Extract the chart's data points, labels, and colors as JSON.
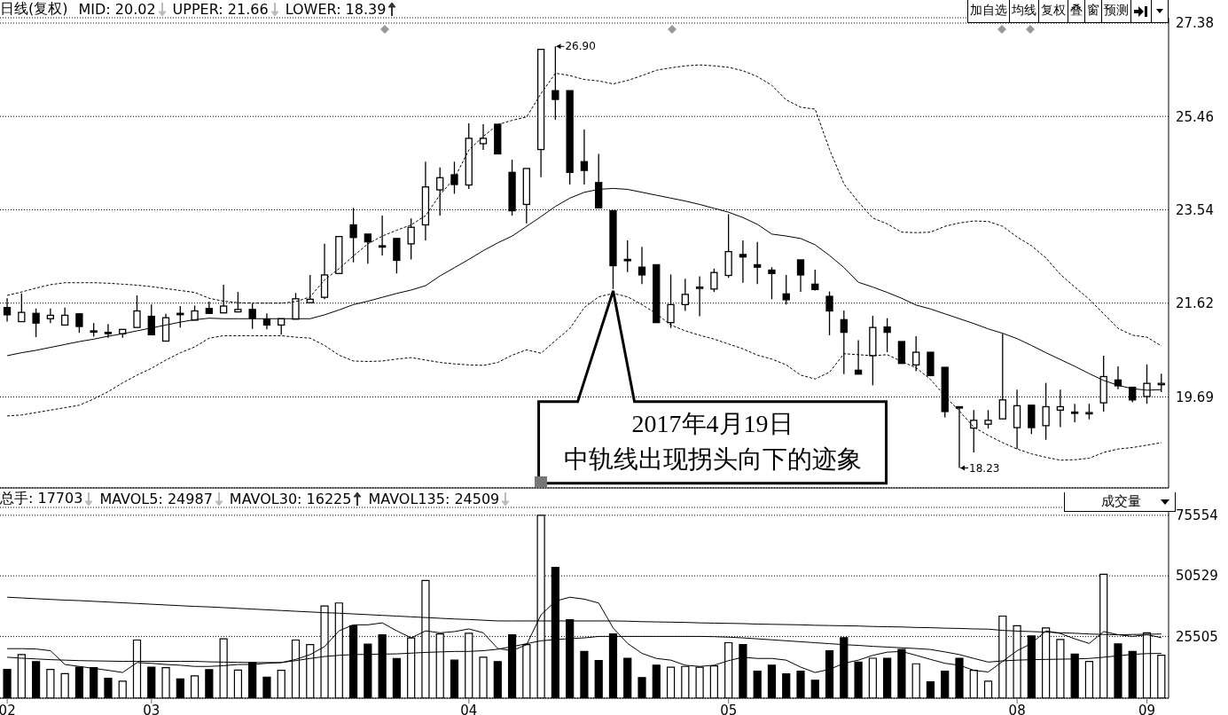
{
  "chart_data": [
    {
      "type": "candlestick",
      "title": "日线(复权)",
      "categories": [
        "02",
        null,
        null,
        null,
        null,
        null,
        null,
        null,
        null,
        null,
        "03",
        null,
        null,
        null,
        null,
        null,
        null,
        null,
        null,
        null,
        null,
        null,
        null,
        null,
        null,
        null,
        null,
        null,
        null,
        null,
        null,
        null,
        "04",
        null,
        null,
        null,
        null,
        null,
        null,
        null,
        null,
        null,
        null,
        null,
        null,
        null,
        null,
        null,
        null,
        null,
        "05",
        null,
        null,
        null,
        null,
        null,
        null,
        null,
        null,
        null,
        null,
        null,
        null,
        null,
        null,
        null,
        null,
        null,
        null,
        null,
        "08",
        null,
        null,
        null,
        null,
        null,
        null,
        null,
        null,
        "09",
        null
      ],
      "ohlc": [
        [
          21.53,
          21.72,
          21.24,
          21.38
        ],
        [
          21.24,
          21.82,
          21.24,
          21.43
        ],
        [
          21.41,
          21.51,
          20.92,
          21.21
        ],
        [
          21.3,
          21.51,
          21.21,
          21.37
        ],
        [
          21.17,
          21.53,
          21.17,
          21.37
        ],
        [
          21.4,
          21.4,
          21.01,
          21.14
        ],
        [
          21.05,
          21.21,
          20.93,
          21.04
        ],
        [
          21.02,
          21.19,
          20.91,
          21.01
        ],
        [
          20.99,
          21.08,
          20.91,
          21.08
        ],
        [
          21.12,
          21.78,
          21.12,
          21.46
        ],
        [
          21.35,
          21.59,
          20.97,
          20.97
        ],
        [
          20.84,
          21.4,
          20.84,
          21.32
        ],
        [
          21.41,
          21.56,
          21.12,
          21.4
        ],
        [
          21.27,
          21.57,
          21.27,
          21.46
        ],
        [
          21.51,
          21.65,
          21.4,
          21.41
        ],
        [
          21.42,
          22.0,
          21.42,
          21.56
        ],
        [
          21.44,
          21.85,
          21.44,
          21.49
        ],
        [
          21.49,
          21.61,
          21.09,
          21.31
        ],
        [
          21.29,
          21.41,
          21.08,
          21.17
        ],
        [
          21.17,
          21.3,
          20.97,
          21.3
        ],
        [
          21.29,
          21.83,
          21.29,
          21.71
        ],
        [
          21.63,
          22.2,
          21.63,
          21.7
        ],
        [
          21.74,
          22.84,
          21.7,
          22.2
        ],
        [
          22.23,
          22.99,
          22.23,
          22.99
        ],
        [
          23.23,
          23.58,
          22.46,
          22.97
        ],
        [
          23.04,
          23.04,
          22.43,
          22.88
        ],
        [
          22.8,
          23.42,
          22.6,
          22.79
        ],
        [
          22.95,
          22.95,
          22.23,
          22.5
        ],
        [
          22.84,
          23.36,
          22.52,
          23.18
        ],
        [
          23.23,
          24.53,
          22.91,
          24.01
        ],
        [
          23.95,
          24.41,
          23.42,
          24.2
        ],
        [
          24.26,
          24.53,
          23.87,
          24.06
        ],
        [
          24.05,
          25.32,
          23.97,
          25.01
        ],
        [
          24.9,
          25.3,
          24.77,
          25.01
        ],
        [
          25.3,
          25.3,
          24.69,
          24.69
        ],
        [
          24.31,
          24.57,
          23.42,
          23.52
        ],
        [
          23.65,
          24.39,
          23.26,
          24.39
        ],
        [
          24.78,
          26.84,
          24.21,
          26.84
        ],
        [
          25.99,
          26.9,
          25.39,
          25.81
        ],
        [
          25.99,
          25.99,
          24.06,
          24.31
        ],
        [
          24.53,
          25.19,
          24.06,
          24.35
        ],
        [
          24.1,
          24.69,
          23.58,
          23.58
        ],
        [
          23.52,
          23.52,
          21.91,
          22.39
        ],
        [
          22.52,
          22.91,
          22.26,
          22.51
        ],
        [
          22.36,
          22.78,
          22.01,
          22.2
        ],
        [
          22.41,
          22.41,
          21.22,
          21.22
        ],
        [
          21.22,
          22.21,
          21.11,
          21.59
        ],
        [
          21.59,
          22.12,
          21.46,
          21.8
        ],
        [
          21.94,
          22.17,
          21.35,
          21.95
        ],
        [
          21.91,
          22.33,
          21.85,
          22.25
        ],
        [
          22.19,
          23.45,
          22.14,
          22.68
        ],
        [
          22.62,
          22.91,
          22.04,
          22.57
        ],
        [
          22.41,
          22.88,
          22.01,
          22.36
        ],
        [
          22.3,
          22.36,
          21.7,
          22.23
        ],
        [
          21.81,
          22.2,
          21.59,
          21.69
        ],
        [
          22.51,
          22.51,
          21.85,
          22.2
        ],
        [
          22.01,
          22.31,
          21.88,
          21.9
        ],
        [
          21.76,
          21.86,
          20.96,
          21.46
        ],
        [
          21.28,
          21.47,
          20.16,
          21.02
        ],
        [
          20.24,
          20.86,
          20.16,
          20.16
        ],
        [
          20.54,
          21.36,
          19.93,
          21.12
        ],
        [
          21.13,
          21.31,
          20.61,
          21.02
        ],
        [
          20.83,
          20.83,
          20.38,
          20.38
        ],
        [
          20.35,
          20.94,
          20.22,
          20.61
        ],
        [
          20.61,
          20.61,
          20.13,
          20.13
        ],
        [
          20.3,
          20.3,
          19.27,
          19.39
        ],
        [
          19.49,
          19.49,
          18.23,
          19.48
        ],
        [
          19.05,
          19.42,
          18.55,
          19.21
        ],
        [
          19.13,
          19.42,
          19.04,
          19.21
        ],
        [
          19.24,
          20.99,
          19.24,
          19.63
        ],
        [
          19.06,
          19.84,
          18.62,
          19.51
        ],
        [
          19.52,
          19.52,
          18.93,
          19.06
        ],
        [
          19.1,
          19.98,
          18.81,
          19.49
        ],
        [
          19.42,
          19.84,
          19.07,
          19.49
        ],
        [
          19.38,
          19.55,
          19.17,
          19.37
        ],
        [
          19.36,
          19.55,
          19.23,
          19.37
        ],
        [
          19.57,
          20.54,
          19.39,
          20.11
        ],
        [
          20.04,
          20.32,
          19.85,
          19.92
        ],
        [
          19.89,
          19.89,
          19.58,
          19.63
        ],
        [
          19.7,
          20.36,
          19.55,
          19.97
        ],
        [
          19.96,
          20.17,
          19.79,
          19.97
        ]
      ],
      "colors": [
        "#000000",
        "#ffffff",
        "#000000",
        "#ffffff",
        "#ffffff",
        "#000000",
        "#000000",
        "#000000",
        "#ffffff",
        "#ffffff",
        "#000000",
        "#ffffff",
        "#000000",
        "#ffffff",
        "#000000",
        "#ffffff",
        "#ffffff",
        "#000000",
        "#000000",
        "#ffffff",
        "#ffffff",
        "#ffffff",
        "#ffffff",
        "#ffffff",
        "#000000",
        "#000000",
        "#000000",
        "#000000",
        "#ffffff",
        "#ffffff",
        "#ffffff",
        "#000000",
        "#ffffff",
        "#ffffff",
        "#000000",
        "#000000",
        "#ffffff",
        "#ffffff",
        "#000000",
        "#000000",
        "#000000",
        "#000000",
        "#000000",
        "#000000",
        "#000000",
        "#000000",
        "#ffffff",
        "#ffffff",
        "#ffffff",
        "#ffffff",
        "#ffffff",
        "#000000",
        "#000000",
        "#000000",
        "#000000",
        "#000000",
        "#000000",
        "#000000",
        "#000000",
        "#000000",
        "#ffffff",
        "#000000",
        "#000000",
        "#ffffff",
        "#000000",
        "#000000",
        "#000000",
        "#ffffff",
        "#ffffff",
        "#ffffff",
        "#ffffff",
        "#000000",
        "#ffffff",
        "#ffffff",
        "#000000",
        "#ffffff",
        "#ffffff",
        "#000000",
        "#000000",
        "#ffffff",
        "#ffffff"
      ],
      "series": [
        {
          "type": "line",
          "color": "#000000",
          "line_style": "solid",
          "values": [
            20.54,
            20.6,
            20.65,
            20.71,
            20.77,
            20.83,
            20.88,
            20.94,
            20.99,
            21.05,
            21.11,
            21.17,
            21.23,
            21.28,
            21.31,
            21.3,
            21.3,
            21.3,
            21.3,
            21.3,
            21.3,
            21.3,
            21.38,
            21.48,
            21.59,
            21.66,
            21.74,
            21.82,
            21.89,
            21.98,
            22.18,
            22.35,
            22.52,
            22.7,
            22.86,
            23.0,
            23.2,
            23.4,
            23.61,
            23.78,
            23.9,
            23.96,
            23.98,
            23.96,
            23.9,
            23.84,
            23.78,
            23.72,
            23.65,
            23.57,
            23.49,
            23.38,
            23.24,
            23.04,
            23.0,
            22.95,
            22.82,
            22.6,
            22.35,
            22.05,
            21.95,
            21.84,
            21.72,
            21.58,
            21.5,
            21.4,
            21.3,
            21.2,
            21.09,
            21.0,
            20.89,
            20.75,
            20.6,
            20.46,
            20.32,
            20.17,
            20.03,
            19.93,
            19.86,
            19.83,
            19.84
          ]
        },
        {
          "type": "line",
          "color": "#000000",
          "line_style": "dashed",
          "values": [
            21.78,
            21.85,
            21.93,
            22.0,
            22.04,
            22.04,
            22.04,
            22.03,
            22.01,
            21.99,
            21.96,
            21.92,
            21.88,
            21.84,
            21.72,
            21.66,
            21.63,
            21.62,
            21.62,
            21.62,
            21.65,
            21.75,
            22.1,
            22.33,
            22.59,
            22.84,
            23.0,
            23.12,
            23.23,
            23.42,
            23.85,
            24.19,
            24.77,
            25.05,
            25.29,
            25.38,
            25.45,
            25.93,
            26.35,
            26.3,
            26.22,
            26.19,
            26.13,
            26.2,
            26.3,
            26.41,
            26.46,
            26.5,
            26.52,
            26.5,
            26.47,
            26.4,
            26.28,
            26.1,
            25.8,
            25.65,
            25.61,
            24.78,
            24.07,
            23.7,
            23.37,
            23.25,
            23.08,
            23.07,
            23.08,
            23.2,
            23.27,
            23.31,
            23.3,
            23.2,
            22.98,
            22.8,
            22.55,
            22.21,
            21.95,
            21.7,
            21.4,
            21.1,
            20.96,
            20.92,
            20.74
          ]
        },
        {
          "type": "line",
          "color": "#000000",
          "line_style": "dashed",
          "values": [
            19.3,
            19.32,
            19.37,
            19.42,
            19.47,
            19.52,
            19.65,
            19.8,
            19.98,
            20.14,
            20.28,
            20.45,
            20.6,
            20.72,
            20.9,
            20.95,
            20.95,
            20.95,
            20.95,
            20.95,
            20.92,
            20.9,
            20.75,
            20.55,
            20.43,
            20.42,
            20.43,
            20.47,
            20.5,
            20.45,
            20.4,
            20.37,
            20.35,
            20.34,
            20.4,
            20.55,
            20.66,
            20.59,
            20.85,
            21.1,
            21.53,
            21.75,
            21.82,
            21.75,
            21.59,
            21.4,
            21.17,
            21.05,
            20.96,
            20.88,
            20.78,
            20.68,
            20.55,
            20.47,
            20.35,
            20.14,
            20.06,
            20.2,
            20.58,
            20.56,
            20.54,
            20.56,
            20.42,
            20.29,
            20.05,
            19.71,
            19.4,
            19.07,
            18.9,
            18.75,
            18.62,
            18.52,
            18.45,
            18.39,
            18.4,
            18.43,
            18.55,
            18.62,
            18.65,
            18.7,
            18.75
          ]
        }
      ],
      "ylim": [
        17.82,
        27.49
      ],
      "yticks": [
        27.38,
        25.46,
        23.54,
        21.62,
        19.69
      ],
      "grid": "y",
      "tick_labels": "y",
      "annotations": [
        "MID: 20.02",
        "UPPER: 21.66",
        "LOWER: 18.39",
        "加自选",
        "均线",
        "复权",
        "叠",
        "窗",
        "预测",
        "26.90",
        "18.23",
        "2017年4月19日",
        "中轨线出现拐头向下的迹象"
      ]
    },
    {
      "type": "bar",
      "title": "成交量",
      "categories": [
        "02",
        null,
        null,
        null,
        null,
        null,
        null,
        null,
        null,
        null,
        "03",
        null,
        null,
        null,
        null,
        null,
        null,
        null,
        null,
        null,
        null,
        null,
        null,
        null,
        null,
        null,
        null,
        null,
        null,
        null,
        null,
        null,
        "04",
        null,
        null,
        null,
        null,
        null,
        null,
        null,
        null,
        null,
        null,
        null,
        null,
        null,
        null,
        null,
        null,
        null,
        "05",
        null,
        null,
        null,
        null,
        null,
        null,
        null,
        null,
        null,
        null,
        null,
        null,
        null,
        null,
        null,
        null,
        null,
        null,
        null,
        "08",
        null,
        null,
        null,
        null,
        null,
        null,
        null,
        null,
        "09",
        null
      ],
      "values": [
        11900,
        18000,
        15100,
        11900,
        10100,
        12800,
        12600,
        8200,
        7000,
        24000,
        12800,
        12600,
        7900,
        9200,
        11800,
        24500,
        11600,
        14700,
        8700,
        11500,
        24000,
        22100,
        38100,
        39300,
        29900,
        22300,
        26200,
        16400,
        24900,
        48600,
        26500,
        15700,
        26800,
        16900,
        15100,
        26200,
        22100,
        75554,
        54000,
        32400,
        19300,
        15500,
        26500,
        16500,
        8500,
        13600,
        12800,
        13100,
        12800,
        13300,
        22900,
        22100,
        11100,
        13600,
        10000,
        11100,
        7400,
        19600,
        25000,
        14900,
        16500,
        16500,
        20100,
        14200,
        6700,
        11100,
        16500,
        11500,
        7000,
        33900,
        29900,
        25700,
        29000,
        24200,
        18200,
        15200,
        51200,
        22400,
        19300,
        27000,
        17703
      ],
      "colors": [
        "#000000",
        "#ffffff",
        "#000000",
        "#ffffff",
        "#ffffff",
        "#000000",
        "#000000",
        "#000000",
        "#ffffff",
        "#ffffff",
        "#000000",
        "#ffffff",
        "#000000",
        "#ffffff",
        "#000000",
        "#ffffff",
        "#ffffff",
        "#000000",
        "#000000",
        "#ffffff",
        "#ffffff",
        "#ffffff",
        "#ffffff",
        "#ffffff",
        "#000000",
        "#000000",
        "#000000",
        "#000000",
        "#ffffff",
        "#ffffff",
        "#ffffff",
        "#000000",
        "#ffffff",
        "#ffffff",
        "#000000",
        "#000000",
        "#ffffff",
        "#ffffff",
        "#000000",
        "#000000",
        "#000000",
        "#000000",
        "#000000",
        "#000000",
        "#000000",
        "#000000",
        "#ffffff",
        "#ffffff",
        "#ffffff",
        "#ffffff",
        "#ffffff",
        "#000000",
        "#000000",
        "#000000",
        "#000000",
        "#000000",
        "#000000",
        "#000000",
        "#000000",
        "#000000",
        "#ffffff",
        "#000000",
        "#000000",
        "#ffffff",
        "#000000",
        "#000000",
        "#000000",
        "#ffffff",
        "#ffffff",
        "#ffffff",
        "#ffffff",
        "#000000",
        "#ffffff",
        "#ffffff",
        "#000000",
        "#ffffff",
        "#ffffff",
        "#000000",
        "#000000",
        "#ffffff",
        "#ffffff"
      ],
      "series": [
        {
          "type": "line",
          "color": "#000000",
          "values": [
            20450,
            20450,
            20300,
            19600,
            13900,
            13100,
            12300,
            11500,
            10600,
            14700,
            14400,
            13900,
            13600,
            13100,
            13100,
            13400,
            13900,
            13900,
            14400,
            14700,
            16000,
            18000,
            21300,
            27800,
            30300,
            30300,
            31100,
            27800,
            24900,
            27800,
            27000,
            27500,
            28600,
            27000,
            20500,
            19600,
            22100,
            34400,
            40100,
            41700,
            40900,
            39300,
            29000,
            22600,
            18500,
            16400,
            15700,
            13600,
            13100,
            13600,
            15500,
            16900,
            16400,
            16400,
            15700,
            12800,
            10600,
            11900,
            14400,
            15700,
            17700,
            19000,
            19300,
            17700,
            16000,
            14400,
            13600,
            11500,
            10800,
            15200,
            19600,
            22600,
            27800,
            26700,
            24500,
            22600,
            27500,
            26200,
            25500,
            26200,
            25000
          ]
        },
        {
          "type": "line",
          "color": "#000000",
          "values": [
            16900,
            16500,
            16200,
            15900,
            15700,
            15500,
            15400,
            15300,
            15200,
            15200,
            15200,
            15200,
            15200,
            15200,
            15000,
            14900,
            14800,
            14700,
            14700,
            14700,
            15500,
            16400,
            17200,
            17700,
            18000,
            18100,
            18200,
            18300,
            18600,
            18900,
            19100,
            19300,
            19300,
            19600,
            20200,
            21300,
            22500,
            23700,
            24200,
            24600,
            24900,
            25500,
            25500,
            25500,
            25500,
            25500,
            25500,
            25500,
            25500,
            25400,
            25200,
            24900,
            24500,
            24100,
            23700,
            23300,
            22900,
            22500,
            22100,
            21800,
            21400,
            21100,
            20800,
            20500,
            20100,
            19100,
            18000,
            16400,
            14900,
            15400,
            15700,
            15900,
            16000,
            16100,
            16200,
            16400,
            16900,
            17500,
            18100,
            18400,
            18500
          ]
        },
        {
          "type": "line",
          "color": "#000000",
          "values": [
            41700,
            41400,
            41100,
            40800,
            40500,
            40300,
            40000,
            39700,
            39400,
            39100,
            38800,
            38500,
            38200,
            37900,
            37700,
            37400,
            37100,
            36800,
            36500,
            36200,
            35900,
            35600,
            35300,
            35100,
            34800,
            34500,
            34200,
            33900,
            33600,
            33300,
            33000,
            32700,
            32500,
            32200,
            31900,
            31900,
            31900,
            31900,
            31900,
            31900,
            31900,
            31900,
            31900,
            31800,
            31600,
            31500,
            31400,
            31300,
            31100,
            31000,
            30900,
            30800,
            30600,
            30500,
            30400,
            30300,
            30100,
            30000,
            29900,
            29800,
            29600,
            29500,
            29400,
            29200,
            29100,
            28900,
            28800,
            28600,
            28500,
            28000,
            27700,
            27500,
            27300,
            27000,
            26800,
            26500,
            26300,
            26200,
            26300,
            26400,
            26500
          ]
        }
      ],
      "ylim": [
        0,
        78800
      ],
      "yticks": [
        25505,
        50529,
        75554
      ],
      "grid": "y",
      "annotations": [
        "总手: 17703",
        "MAVOL5: 24987",
        "MAVOL30: 16225",
        "MAVOL135: 24509"
      ]
    }
  ]
}
